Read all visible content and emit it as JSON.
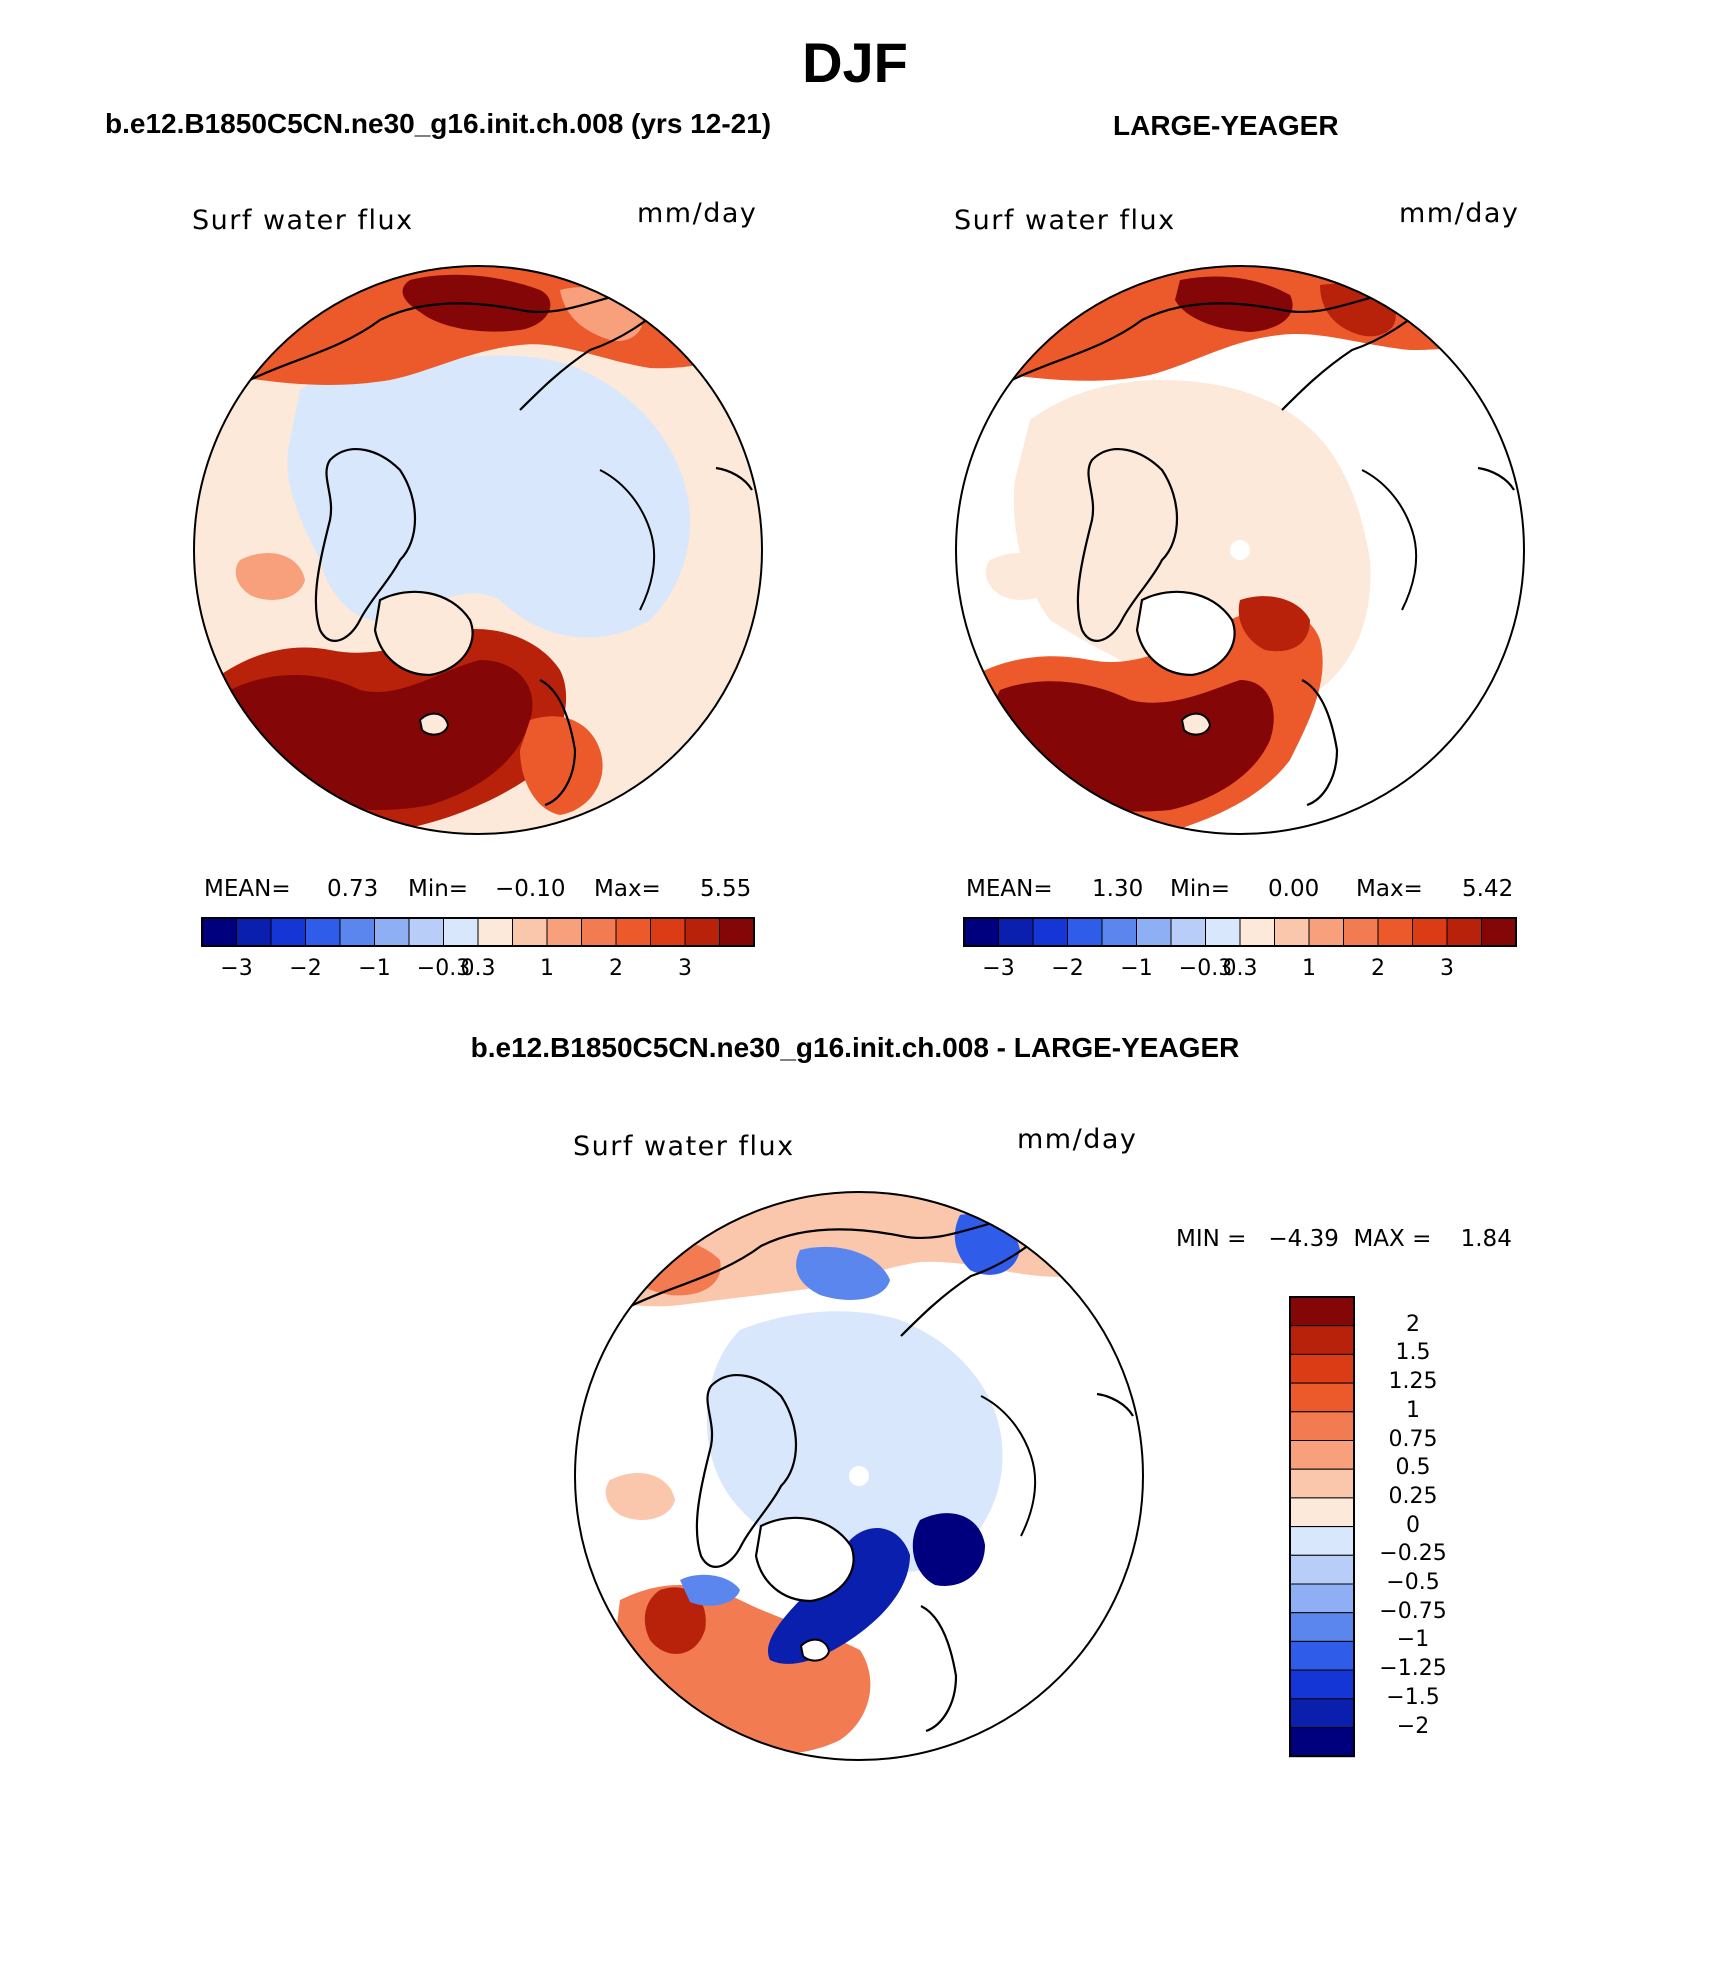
{
  "title": "DJF",
  "panels": [
    {
      "case_title": "b.e12.B1850C5CN.ne30_g16.init.ch.008 (yrs 12-21)",
      "label": "Surf water flux",
      "units": "mm/day",
      "mean_label": "MEAN=",
      "mean_value": "0.73",
      "min_label": "Min=",
      "min_value": "−0.10",
      "max_label": "Max=",
      "max_value": "5.55"
    },
    {
      "case_title": "LARGE-YEAGER",
      "label": "Surf water flux",
      "units": "mm/day",
      "mean_label": "MEAN=",
      "mean_value": "1.30",
      "min_label": "Min=",
      "min_value": "0.00",
      "max_label": "Max=",
      "max_value": "5.42"
    }
  ],
  "colorbar_ticks": [
    "−3",
    "−2",
    "−1",
    "−0.3",
    "0.3",
    "1",
    "2",
    "3"
  ],
  "colorbar_colors": [
    "#00007f",
    "#0a1fae",
    "#1436d6",
    "#2f5de9",
    "#5b86ee",
    "#8eaff3",
    "#b8cdf7",
    "#d8e7fb",
    "#fde9da",
    "#fbc7ac",
    "#f8a07c",
    "#f37b51",
    "#ec5a2c",
    "#db3c15",
    "#b8220a",
    "#850606"
  ],
  "diff": {
    "title": "b.e12.B1850C5CN.ne30_g16.init.ch.008 - LARGE-YEAGER",
    "label": "Surf water flux",
    "units": "mm/day",
    "min_max": "MIN =   −4.39  MAX =    1.84",
    "levels": [
      "2",
      "1.5",
      "1.25",
      "1",
      "0.75",
      "0.5",
      "0.25",
      "0",
      "−0.25",
      "−0.5",
      "−0.75",
      "−1",
      "−1.25",
      "−1.5",
      "−2"
    ],
    "colors": [
      "#850606",
      "#b8220a",
      "#db3c15",
      "#ec5a2c",
      "#f37b51",
      "#f8a07c",
      "#fbc7ac",
      "#fde9da",
      "#d8e7fb",
      "#b8cdf7",
      "#8eaff3",
      "#5b86ee",
      "#2f5de9",
      "#1436d6",
      "#0a1fae",
      "#00007f"
    ]
  }
}
